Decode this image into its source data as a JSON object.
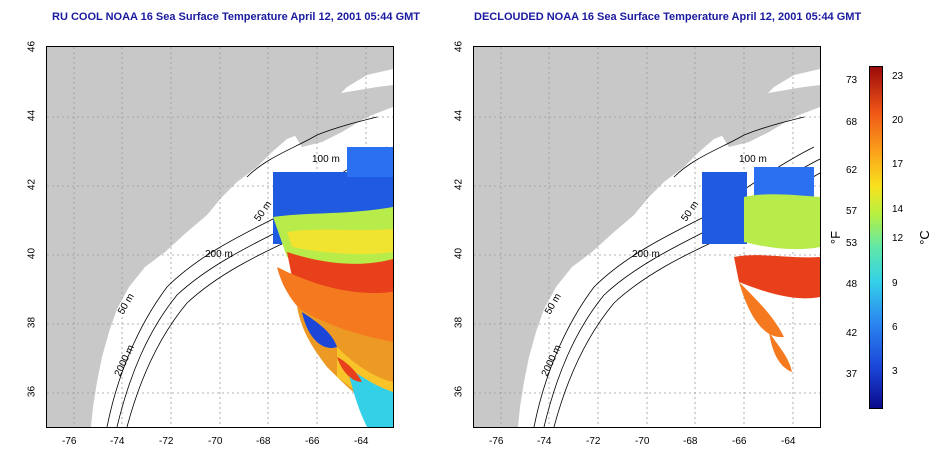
{
  "left_panel": {
    "title": "RU COOL NOAA 16 Sea Surface Temperature April 12, 2001 05:44 GMT"
  },
  "right_panel": {
    "title": "DECLOUDED NOAA 16 Sea Surface Temperature April 12, 2001 05:44 GMT"
  },
  "axes": {
    "lat_ticks": [
      "46",
      "44",
      "42",
      "40",
      "38",
      "36"
    ],
    "lon_ticks": [
      "-76",
      "-74",
      "-72",
      "-70",
      "-68",
      "-66",
      "-64"
    ]
  },
  "contours": [
    "100 m",
    "200 m",
    "50 m",
    "2000 m"
  ],
  "colorbar": {
    "f_label": "°F",
    "c_label": "°C",
    "f_ticks": [
      "73",
      "68",
      "62",
      "57",
      "53",
      "48",
      "42",
      "37"
    ],
    "c_ticks": [
      "23",
      "20",
      "17",
      "14",
      "12",
      "9",
      "6",
      "3"
    ]
  },
  "colors": {
    "land": "#c8c8c8",
    "title": "#1a1aa0",
    "grid": "#9a9a9a"
  }
}
